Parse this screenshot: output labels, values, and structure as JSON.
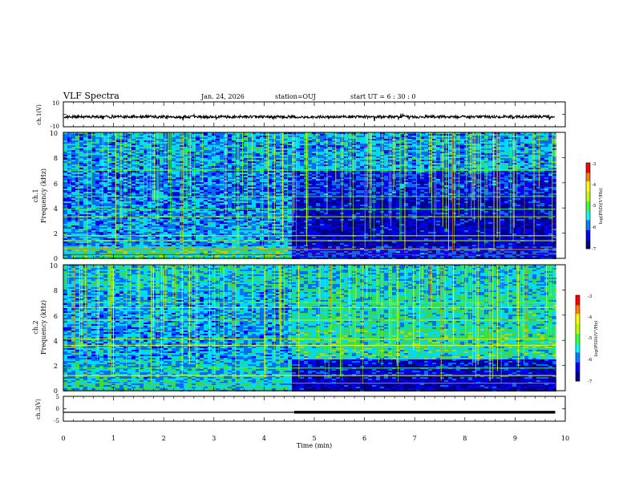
{
  "header": {
    "title": "VLF Spectra",
    "date": "Jan. 24, 2026",
    "station": "station=OUJ",
    "start_ut": "start UT =  6 : 30 : 0"
  },
  "colors": {
    "background": "#ffffff",
    "axis": "#000000",
    "colormap": [
      "#000080",
      "#0000ff",
      "#0080ff",
      "#00ffff",
      "#40ff40",
      "#c0ff00",
      "#ffff00",
      "#ff8000",
      "#ff0000",
      "#ffffff"
    ]
  },
  "chart_data": [
    {
      "type": "line",
      "name": "ch1-waveform",
      "ylabel": "ch.1(V)",
      "ylim": [
        -10,
        10
      ],
      "ytick_labels": [
        "10",
        "-10"
      ],
      "xlim": [
        0,
        10
      ],
      "trace_level_V": -2,
      "trace_end_min": 9.8
    },
    {
      "type": "heatmap",
      "name": "ch1-spectrogram",
      "ylabel_channel": "ch.1",
      "ylabel": "Frequency (kHz)",
      "ylim": [
        0,
        10
      ],
      "ytick_labels": [
        "0",
        "2",
        "4",
        "6",
        "8",
        "10"
      ],
      "xlim": [
        0,
        10
      ],
      "data_end_min": 9.8,
      "regime_change_min": 4.5,
      "colorbar": {
        "label": "log(PSD)(V²/Hz)",
        "range": [
          -7,
          -3
        ],
        "tick_labels": [
          "-3",
          "-4",
          "-5",
          "-6",
          "-7"
        ]
      }
    },
    {
      "type": "heatmap",
      "name": "ch2-spectrogram",
      "ylabel_channel": "ch.2",
      "ylabel": "Frequency (kHz)",
      "ylim": [
        0,
        10
      ],
      "ytick_labels": [
        "0",
        "2",
        "4",
        "6",
        "8",
        "10"
      ],
      "xlim": [
        0,
        10
      ],
      "data_end_min": 9.8,
      "regime_change_min": 4.5,
      "colorbar": {
        "label": "log(PSD)(V²/Hz)",
        "range": [
          -7,
          -3
        ],
        "tick_labels": [
          "-3",
          "-4",
          "-5",
          "-6",
          "-7"
        ]
      }
    },
    {
      "type": "line",
      "name": "ch3-level",
      "ylabel": "ch.3(V)",
      "ylim": [
        -5,
        5
      ],
      "ytick_labels": [
        "5",
        "0",
        "-5"
      ],
      "xlim": [
        0,
        10
      ],
      "x": [
        0,
        4.6,
        4.6,
        9.8
      ],
      "y": [
        -1.4,
        -1.4,
        -1.4,
        -1.4
      ],
      "segment_widths_note": "thin before 4.6 min, thick after"
    }
  ],
  "xaxis": {
    "label": "Time (min)",
    "tick_labels": [
      "0",
      "1",
      "2",
      "3",
      "4",
      "5",
      "6",
      "7",
      "8",
      "9",
      "10"
    ]
  }
}
